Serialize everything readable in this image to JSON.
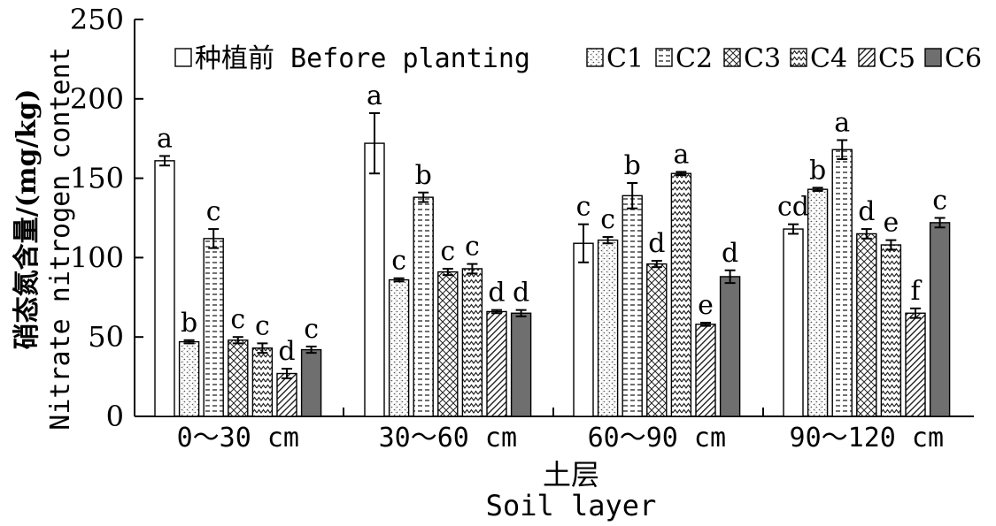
{
  "chart_data": {
    "type": "bar",
    "categories": [
      "0～30 cm",
      "30～60 cm",
      "60～90 cm",
      "90～120 cm"
    ],
    "series": [
      {
        "name": "种植前 Before planting",
        "values": [
          161,
          172,
          109,
          118
        ],
        "errors": [
          3,
          19,
          12,
          3
        ],
        "letters": [
          "a",
          "a",
          "c",
          "cd"
        ]
      },
      {
        "name": "C1",
        "values": [
          47,
          86,
          111,
          143
        ],
        "errors": [
          1,
          1,
          2,
          1
        ],
        "letters": [
          "b",
          "c",
          "c",
          "b"
        ]
      },
      {
        "name": "C2",
        "values": [
          112,
          138,
          139,
          168
        ],
        "errors": [
          6,
          3,
          8,
          6
        ],
        "letters": [
          "c",
          "b",
          "b",
          "a"
        ]
      },
      {
        "name": "C3",
        "values": [
          48,
          91,
          96,
          115
        ],
        "errors": [
          2,
          2,
          2,
          3
        ],
        "letters": [
          "c",
          "c",
          "d",
          "d"
        ]
      },
      {
        "name": "C4",
        "values": [
          43,
          93,
          153,
          108
        ],
        "errors": [
          3,
          3,
          1,
          3
        ],
        "letters": [
          "c",
          "c",
          "a",
          "e"
        ]
      },
      {
        "name": "C5",
        "values": [
          27,
          66,
          58,
          65
        ],
        "errors": [
          3,
          1,
          1,
          3
        ],
        "letters": [
          "d",
          "d",
          "e",
          "f"
        ]
      },
      {
        "name": "C6",
        "values": [
          42,
          65,
          88,
          122
        ],
        "errors": [
          2,
          2,
          4,
          3
        ],
        "letters": [
          "c",
          "d",
          "d",
          "c"
        ]
      }
    ],
    "ylabel_cn": "硝态氮含量/(mg/kg)",
    "ylabel_en": "Nitrate nitrogen content",
    "xlabel_cn": "土层",
    "xlabel_en": "Soil layer",
    "ylim": [
      0,
      250
    ],
    "yticks": [
      0,
      50,
      100,
      150,
      200,
      250
    ],
    "grid": false,
    "legend_position": "top"
  }
}
